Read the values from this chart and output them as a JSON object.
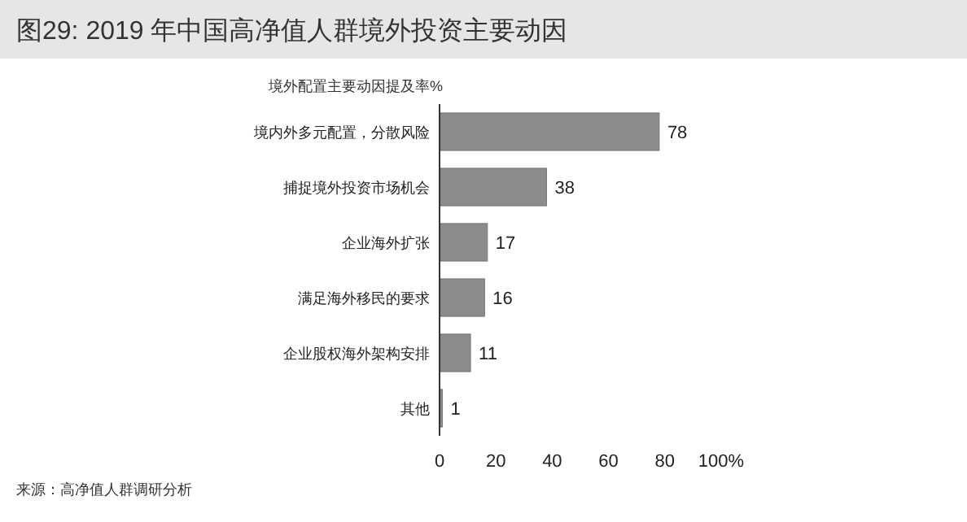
{
  "chart_data": {
    "type": "bar",
    "orientation": "horizontal",
    "title": "图29: 2019 年中国高净值人群境外投资主要动因",
    "subtitle": "境外配置主要动因提及率%",
    "categories": [
      "境内外多元配置，分散风险",
      "捕捉境外投资市场机会",
      "企业海外扩张",
      "满足海外移民的要求",
      "企业股权海外架构安排",
      "其他"
    ],
    "values": [
      78,
      38,
      17,
      16,
      11,
      1
    ],
    "color": "#8c8c8c",
    "data_labels": true,
    "xlim": [
      0,
      100
    ],
    "xticks": [
      0,
      20,
      40,
      60,
      80,
      {
        "value": 100,
        "label": "100%"
      }
    ],
    "annotations": [
      "来源：高净值人群调研分析"
    ]
  }
}
